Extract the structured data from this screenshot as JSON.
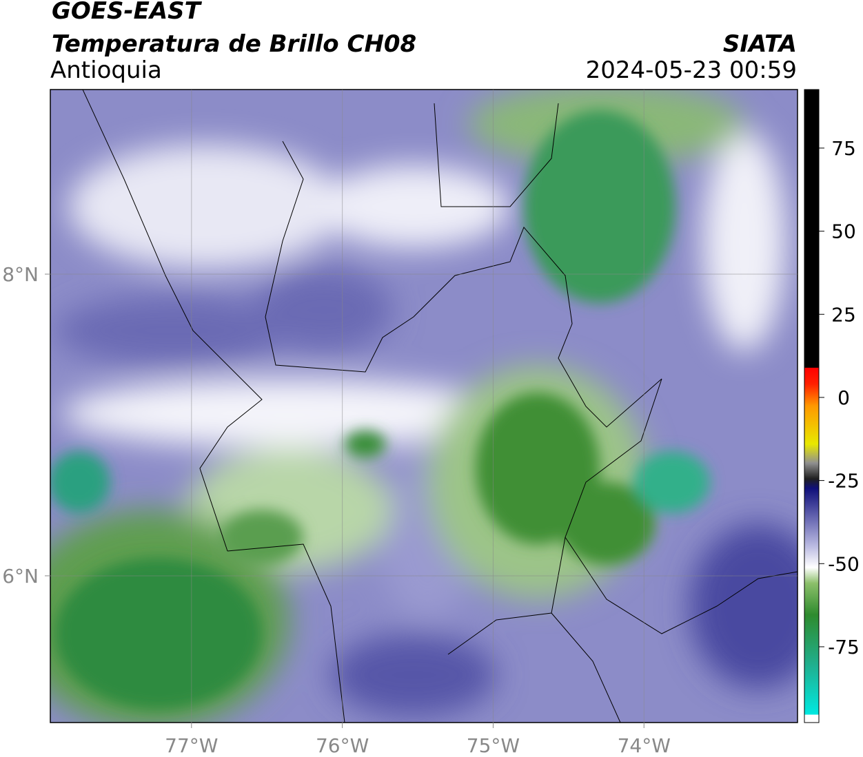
{
  "header": {
    "satellite": "GOES-EAST",
    "product": "Temperatura de Brillo CH08",
    "region": "Antioquia",
    "agency": "SIATA",
    "datetime": "2024-05-23 00:59"
  },
  "map": {
    "lon_range": [
      -77.936,
      -72.982
    ],
    "lat_range": [
      5.027,
      9.224
    ],
    "lon_ticks": [
      {
        "value": -77,
        "label": "77°W"
      },
      {
        "value": -76,
        "label": "76°W"
      },
      {
        "value": -75,
        "label": "75°W"
      },
      {
        "value": -74,
        "label": "74°W"
      }
    ],
    "lat_ticks": [
      {
        "value": 8,
        "label": "8°N"
      },
      {
        "value": 6,
        "label": "6°N"
      }
    ]
  },
  "colorbar": {
    "range": [
      -97.8,
      92.6
    ],
    "ticks": [
      75,
      50,
      25,
      0,
      -25,
      -50,
      -75
    ]
  }
}
